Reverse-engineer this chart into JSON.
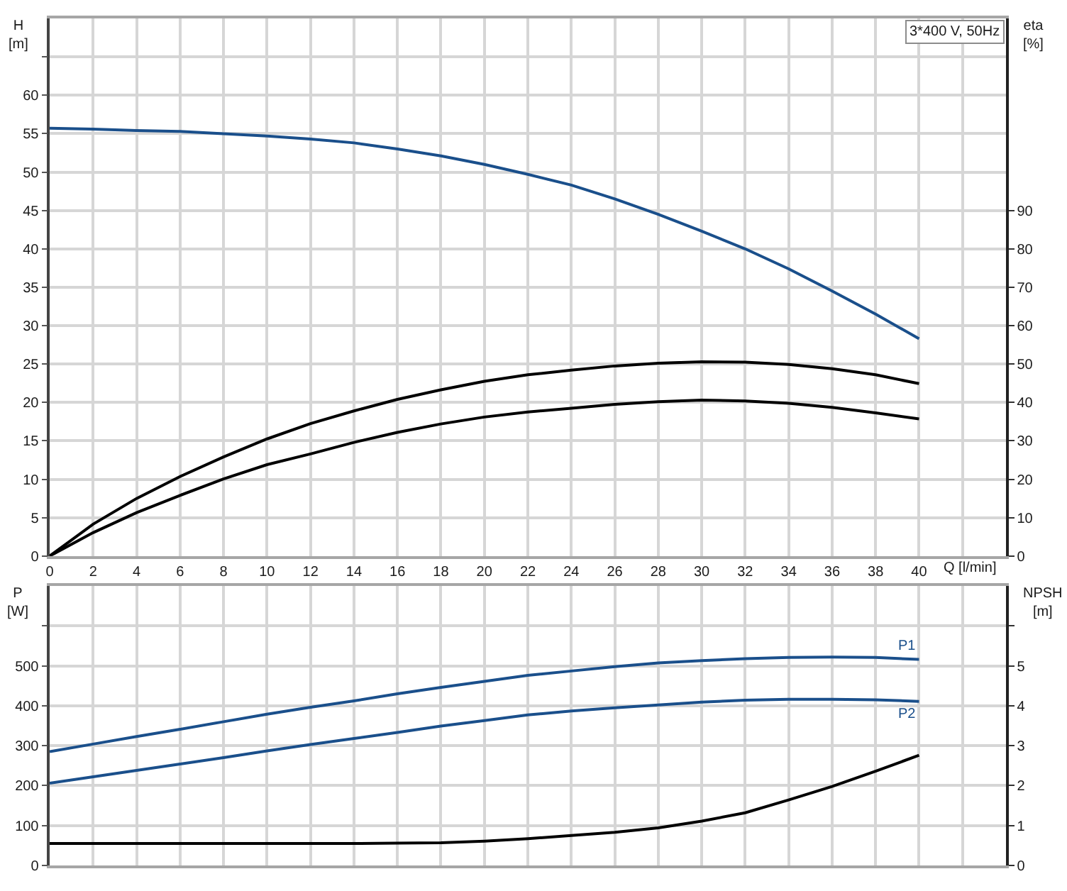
{
  "chart_data": [
    {
      "type": "line",
      "x": [
        0,
        2,
        4,
        6,
        8,
        10,
        12,
        14,
        16,
        18,
        20,
        22,
        24,
        26,
        28,
        30,
        32,
        34,
        36,
        38,
        40
      ],
      "xlim": [
        0,
        44
      ],
      "xticks": [
        0,
        2,
        4,
        6,
        8,
        10,
        12,
        14,
        16,
        18,
        20,
        22,
        24,
        26,
        28,
        30,
        32,
        34,
        36,
        38,
        40,
        {
          "value": 42,
          "label": null
        }
      ],
      "xlabel": "Q [l/min]",
      "ylabel": "H\n[m]",
      "ylim": [
        0,
        70
      ],
      "yticks": [
        0,
        5,
        10,
        15,
        20,
        25,
        30,
        35,
        40,
        45,
        50,
        55,
        60,
        {
          "value": 65,
          "label": null
        }
      ],
      "y2label": "eta\n[%]",
      "y2lim": [
        0,
        140
      ],
      "y2ticks": [
        0,
        10,
        20,
        30,
        40,
        50,
        60,
        70,
        80,
        90
      ],
      "grid": true,
      "annotations": [
        "3*400 V, 50Hz"
      ],
      "series": [
        {
          "color": "#1a4f8b",
          "values": [
            55.7,
            55.6,
            55.4,
            55.3,
            55.0,
            54.7,
            54.3,
            53.8,
            53.0,
            52.1,
            51.0,
            49.7,
            48.3,
            46.5,
            44.5,
            42.3,
            40.0,
            37.4,
            34.5,
            31.5,
            28.3
          ]
        },
        {
          "color": "#000000",
          "axis": "y2",
          "values": [
            0,
            8.3,
            15.0,
            20.7,
            25.8,
            30.5,
            34.5,
            37.8,
            40.8,
            43.3,
            45.5,
            47.2,
            48.4,
            49.5,
            50.2,
            50.6,
            50.5,
            49.9,
            48.8,
            47.2,
            44.9
          ]
        },
        {
          "color": "#000000",
          "axis": "y2",
          "values": [
            0,
            6.1,
            11.3,
            15.8,
            20.1,
            23.8,
            26.6,
            29.6,
            32.2,
            34.4,
            36.2,
            37.5,
            38.5,
            39.5,
            40.2,
            40.6,
            40.4,
            39.8,
            38.7,
            37.3,
            35.7
          ]
        }
      ]
    },
    {
      "type": "line",
      "x": [
        0,
        2,
        4,
        6,
        8,
        10,
        12,
        14,
        16,
        18,
        20,
        22,
        24,
        26,
        28,
        30,
        32,
        34,
        36,
        38,
        40
      ],
      "xlim": [
        0,
        44
      ],
      "xticks": [
        0,
        2,
        4,
        6,
        8,
        10,
        12,
        14,
        16,
        18,
        20,
        22,
        24,
        26,
        28,
        30,
        32,
        34,
        36,
        38,
        40,
        {
          "value": 42,
          "label": null
        }
      ],
      "tick_labels": "y",
      "ylabel": "P\n[W]",
      "ylim": [
        0,
        700
      ],
      "yticks": [
        0,
        100,
        200,
        300,
        400,
        500,
        {
          "value": 600,
          "label": null
        }
      ],
      "y2label": "NPSH\n[m]",
      "y2lim": [
        0,
        7
      ],
      "y2ticks": [
        0,
        1,
        2,
        3,
        4,
        5,
        {
          "value": 6,
          "label": null
        }
      ],
      "grid": true,
      "series": [
        {
          "name": "P1",
          "color": "#1a4f8b",
          "values": [
            285,
            304,
            323,
            341,
            360,
            379,
            396,
            412,
            430,
            446,
            461,
            476,
            487,
            498,
            507,
            513,
            518,
            521,
            522,
            521,
            516
          ]
        },
        {
          "name": "P2",
          "color": "#1a4f8b",
          "values": [
            206,
            222,
            238,
            254,
            270,
            287,
            303,
            318,
            333,
            349,
            363,
            377,
            387,
            395,
            402,
            409,
            414,
            416,
            416,
            415,
            411
          ]
        },
        {
          "color": "#000000",
          "axis": "y2",
          "values": [
            0.55,
            0.55,
            0.55,
            0.55,
            0.55,
            0.55,
            0.55,
            0.55,
            0.56,
            0.57,
            0.61,
            0.67,
            0.75,
            0.83,
            0.94,
            1.11,
            1.32,
            1.64,
            1.98,
            2.36,
            2.76
          ]
        }
      ]
    }
  ]
}
